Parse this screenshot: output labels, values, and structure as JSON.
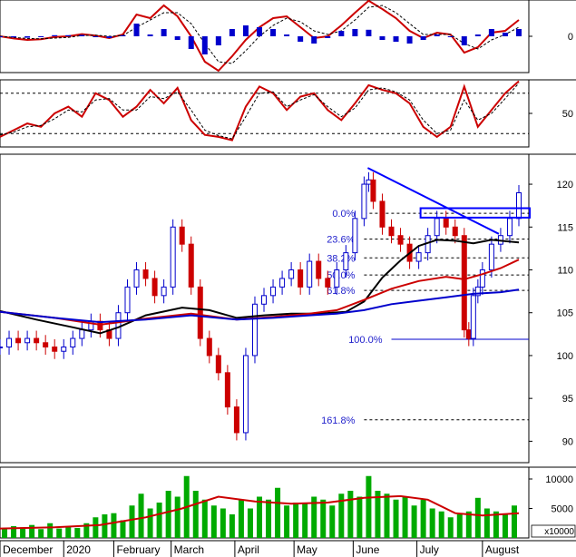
{
  "chart_data": [
    {
      "type": "line",
      "panel": "macd",
      "y_ticks": [
        0
      ],
      "ylim": [
        -1,
        1
      ],
      "series": [
        {
          "role": "macd",
          "color": "#cc0000",
          "x": [
            0,
            15,
            30,
            45,
            60,
            75,
            90,
            105,
            120,
            135,
            150,
            165,
            180,
            195,
            210,
            225,
            240,
            255,
            270,
            285,
            300,
            315,
            330,
            345,
            360,
            375,
            390,
            405,
            420,
            435,
            450,
            465,
            480,
            495,
            510,
            525,
            540,
            555,
            570
          ],
          "y": [
            0.0,
            -0.06,
            -0.1,
            -0.08,
            -0.02,
            0.0,
            0.06,
            0.02,
            -0.05,
            0.05,
            0.6,
            0.5,
            0.85,
            0.55,
            0.0,
            -0.7,
            -0.95,
            -0.55,
            -0.1,
            0.25,
            0.5,
            0.55,
            0.25,
            -0.05,
            0.0,
            0.3,
            0.65,
            0.98,
            0.75,
            0.5,
            0.15,
            -0.05,
            0.1,
            0.05,
            -0.45,
            -0.3,
            0.1,
            0.15,
            0.45
          ]
        },
        {
          "role": "signal",
          "color": "#000000",
          "dash": true,
          "x": [
            0,
            15,
            30,
            45,
            60,
            75,
            90,
            105,
            120,
            135,
            150,
            165,
            180,
            195,
            210,
            225,
            240,
            255,
            270,
            285,
            300,
            315,
            330,
            345,
            360,
            375,
            390,
            405,
            420,
            435,
            450,
            465,
            480,
            495,
            510,
            525,
            540,
            555,
            570
          ],
          "y": [
            0.0,
            -0.03,
            -0.06,
            -0.07,
            -0.05,
            -0.03,
            0.02,
            0.03,
            0.0,
            0.02,
            0.25,
            0.45,
            0.65,
            0.65,
            0.35,
            -0.2,
            -0.7,
            -0.75,
            -0.4,
            0.0,
            0.3,
            0.5,
            0.4,
            0.15,
            0.05,
            0.15,
            0.45,
            0.8,
            0.85,
            0.65,
            0.35,
            0.05,
            0.05,
            0.05,
            -0.2,
            -0.35,
            -0.1,
            0.05,
            0.25
          ]
        },
        {
          "role": "histogram",
          "color": "#0000cc",
          "type": "bar",
          "x": [
            0,
            15,
            30,
            45,
            60,
            75,
            90,
            105,
            120,
            135,
            150,
            165,
            180,
            195,
            210,
            225,
            240,
            255,
            270,
            285,
            300,
            315,
            330,
            345,
            360,
            375,
            390,
            405,
            420,
            435,
            450,
            465,
            480,
            495,
            510,
            525,
            540,
            555,
            570
          ],
          "y": [
            0.0,
            -0.03,
            -0.04,
            -0.01,
            0.03,
            0.03,
            0.04,
            -0.01,
            -0.05,
            0.03,
            0.35,
            0.05,
            0.2,
            -0.1,
            -0.35,
            -0.5,
            -0.25,
            0.2,
            0.3,
            0.25,
            0.2,
            0.05,
            -0.15,
            -0.2,
            -0.05,
            0.15,
            0.2,
            0.18,
            -0.1,
            -0.15,
            -0.2,
            -0.1,
            0.05,
            0.0,
            -0.25,
            0.05,
            0.2,
            0.1,
            0.2
          ]
        }
      ]
    },
    {
      "type": "line",
      "panel": "stochastic",
      "y_ticks": [
        50
      ],
      "ylim": [
        0,
        100
      ],
      "reference_lines": [
        20,
        80
      ],
      "series": [
        {
          "role": "%K",
          "color": "#cc0000",
          "x": [
            0,
            15,
            30,
            45,
            60,
            75,
            90,
            105,
            120,
            135,
            150,
            165,
            180,
            195,
            210,
            225,
            240,
            255,
            270,
            285,
            300,
            315,
            330,
            345,
            360,
            375,
            390,
            405,
            420,
            435,
            450,
            465,
            480,
            495,
            510,
            525,
            540,
            555,
            570
          ],
          "y": [
            15,
            25,
            35,
            30,
            50,
            60,
            45,
            80,
            70,
            45,
            60,
            85,
            65,
            88,
            40,
            18,
            15,
            10,
            60,
            90,
            80,
            55,
            75,
            80,
            55,
            40,
            65,
            92,
            85,
            80,
            65,
            30,
            15,
            30,
            90,
            30,
            55,
            80,
            98
          ]
        },
        {
          "role": "%D",
          "color": "#000000",
          "dash": true,
          "x": [
            0,
            15,
            30,
            45,
            60,
            75,
            90,
            105,
            120,
            135,
            150,
            165,
            180,
            195,
            210,
            225,
            240,
            255,
            270,
            285,
            300,
            315,
            330,
            345,
            360,
            375,
            390,
            405,
            420,
            435,
            450,
            465,
            480,
            495,
            510,
            525,
            540,
            555,
            570
          ],
          "y": [
            18,
            22,
            30,
            32,
            42,
            55,
            52,
            70,
            72,
            55,
            55,
            75,
            72,
            82,
            55,
            25,
            17,
            12,
            45,
            80,
            82,
            60,
            70,
            78,
            60,
            45,
            58,
            85,
            88,
            82,
            70,
            40,
            20,
            25,
            70,
            40,
            50,
            72,
            95
          ]
        }
      ]
    },
    {
      "type": "line",
      "panel": "price",
      "y_ticks": [
        90,
        95,
        100,
        105,
        110,
        115,
        120
      ],
      "ylim": [
        87.5,
        123.5
      ],
      "fibonacci": [
        {
          "label": "0.0%",
          "value": 116.6
        },
        {
          "label": "23.6%",
          "value": 113.6
        },
        {
          "label": "38.2%",
          "value": 111.4
        },
        {
          "label": "50.0%",
          "value": 109.4
        },
        {
          "label": "61.8%",
          "value": 107.6
        },
        {
          "label": "100.0%",
          "value": 101.9
        },
        {
          "label": "161.8%",
          "value": 92.5
        }
      ],
      "series": [
        {
          "role": "close",
          "color": "#0000cc",
          "style": "candles",
          "x": [
            0,
            10,
            20,
            30,
            40,
            50,
            60,
            70,
            80,
            90,
            100,
            110,
            120,
            130,
            140,
            150,
            160,
            170,
            180,
            190,
            200,
            210,
            220,
            230,
            240,
            250,
            260,
            270,
            280,
            290,
            300,
            310,
            320,
            330,
            340,
            350,
            360,
            370,
            380,
            390,
            400,
            405,
            410,
            420,
            430,
            440,
            450,
            460,
            470,
            480,
            490,
            500,
            510,
            515,
            520,
            525,
            530,
            540,
            550,
            560,
            570
          ],
          "y": [
            101,
            102,
            101.5,
            102,
            101.5,
            101,
            100.5,
            101,
            102,
            103,
            104,
            103,
            102,
            105,
            108,
            110,
            109,
            107,
            108,
            115,
            113,
            108,
            102,
            100,
            98,
            94,
            91,
            100,
            106,
            107,
            108,
            109,
            110,
            108,
            111,
            109,
            108,
            110,
            112,
            116,
            120,
            120.5,
            118,
            115,
            114,
            113,
            111,
            112,
            114,
            116,
            115,
            114,
            103,
            102,
            107,
            108,
            110,
            113,
            114,
            116,
            119
          ]
        },
        {
          "role": "ma_black",
          "color": "#000000",
          "x": [
            0,
            40,
            80,
            110,
            130,
            160,
            200,
            230,
            260,
            290,
            320,
            350,
            380,
            400,
            420,
            440,
            460,
            480,
            500,
            520,
            540,
            570
          ],
          "y": [
            105.2,
            104.2,
            103.3,
            102.6,
            103.3,
            104.7,
            105.6,
            105.3,
            104.4,
            104.7,
            104.9,
            104.9,
            105.1,
            106.3,
            109.1,
            111.1,
            112.8,
            113.5,
            113.4,
            113.1,
            113.5,
            113.2
          ]
        },
        {
          "role": "ma_red",
          "color": "#cc0000",
          "x": [
            0,
            60,
            110,
            160,
            210,
            260,
            300,
            340,
            370,
            400,
            430,
            460,
            490,
            510,
            530,
            550,
            570
          ],
          "y": [
            105.1,
            104.4,
            103.6,
            104.3,
            104.9,
            104.2,
            104.5,
            104.9,
            105.3,
            106.5,
            107.8,
            108.7,
            109.2,
            108.9,
            109.5,
            110.2,
            111.2
          ]
        },
        {
          "role": "ma_blue",
          "color": "#0000cc",
          "x": [
            0,
            60,
            110,
            160,
            210,
            260,
            300,
            340,
            370,
            400,
            430,
            460,
            490,
            520,
            550,
            570
          ],
          "y": [
            105.1,
            104.4,
            103.9,
            104.2,
            104.7,
            104.2,
            104.4,
            104.7,
            104.9,
            105.3,
            106.0,
            106.4,
            106.8,
            107.2,
            107.4,
            107.7
          ]
        },
        {
          "role": "trendline",
          "color": "#0000ff",
          "x": [
            404,
            548
          ],
          "y": [
            121.9,
            114.2
          ]
        },
        {
          "role": "resistance_box",
          "color": "#0000ff",
          "x": [
            462,
            582
          ],
          "y": [
            116.1,
            117.2
          ]
        }
      ]
    },
    {
      "type": "bar",
      "panel": "volume",
      "y_ticks": [
        5000,
        10000
      ],
      "unit": "x10000",
      "ylim": [
        0,
        12000
      ],
      "series": [
        {
          "role": "volume",
          "color": "#00aa00",
          "x": [
            5,
            15,
            25,
            35,
            45,
            55,
            65,
            75,
            85,
            95,
            105,
            115,
            125,
            135,
            145,
            155,
            165,
            175,
            185,
            195,
            205,
            215,
            225,
            235,
            245,
            255,
            265,
            275,
            285,
            295,
            305,
            315,
            325,
            335,
            345,
            355,
            365,
            375,
            385,
            395,
            405,
            415,
            425,
            435,
            445,
            455,
            465,
            475,
            485,
            495,
            505,
            515,
            525,
            535,
            545,
            555,
            565
          ],
          "y": [
            1500,
            2000,
            1800,
            2200,
            1500,
            2500,
            1600,
            1900,
            1700,
            2500,
            3500,
            4000,
            4200,
            3000,
            5500,
            7500,
            5000,
            6000,
            8000,
            7000,
            10500,
            8000,
            6500,
            5500,
            5000,
            4000,
            6500,
            5000,
            7000,
            6500,
            8500,
            5500,
            6000,
            6000,
            7000,
            6500,
            5500,
            7500,
            8000,
            7000,
            10500,
            8000,
            7500,
            6500,
            7000,
            5500,
            6500,
            5000,
            4500,
            3500,
            4000,
            4500,
            6800,
            5000,
            4500,
            4000,
            5500
          ]
        },
        {
          "role": "volume_ma",
          "color": "#cc0000",
          "x": [
            0,
            60,
            110,
            160,
            200,
            240,
            280,
            320,
            360,
            400,
            440,
            470,
            500,
            530,
            570
          ],
          "y": [
            1600,
            1800,
            2200,
            3500,
            5000,
            7000,
            6200,
            5800,
            6000,
            6800,
            7100,
            6500,
            4200,
            3800,
            4200
          ]
        }
      ]
    }
  ],
  "axes": {
    "x_labels": [
      "December",
      "2020",
      "February",
      "March",
      "April",
      "May",
      "June",
      "July",
      "August"
    ]
  }
}
